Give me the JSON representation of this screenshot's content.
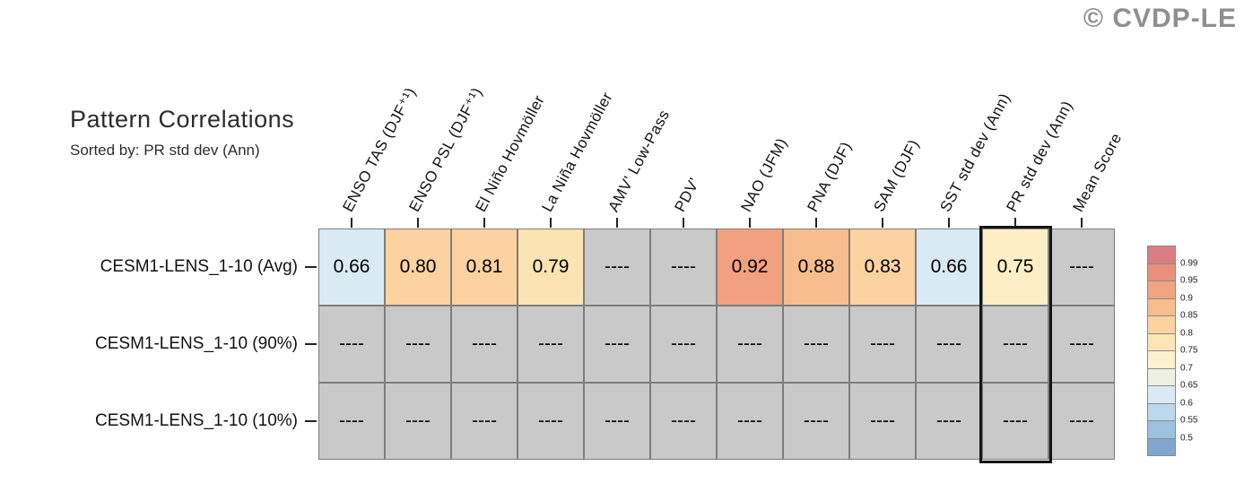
{
  "watermark": "© CVDP-LE",
  "header": {
    "title": "Pattern Correlations",
    "subtitle": "Sorted by: PR std dev (Ann)"
  },
  "chart_data": {
    "type": "heatmap",
    "title": "Pattern Correlations",
    "subtitle": "Sorted by: PR std dev (Ann)",
    "columns": [
      "ENSO TAS (DJF⁺¹)",
      "ENSO PSL (DJF⁺¹)",
      "El Niño Hovmöller",
      "La Niña Hovmöller",
      "AMV' Low-Pass",
      "PDV'",
      "NAO (JFM)",
      "PNA (DJF)",
      "SAM (DJF)",
      "SST std dev (Ann)",
      "PR std dev (Ann)",
      "Mean Score"
    ],
    "rows": [
      {
        "label": "CESM1-LENS_1-10 (Avg)",
        "values": [
          "0.66",
          "0.80",
          "0.81",
          "0.79",
          "----",
          "----",
          "0.92",
          "0.88",
          "0.83",
          "0.66",
          "0.75",
          "----"
        ],
        "colors": [
          "#daeaf4",
          "#fbd2a0",
          "#fbd2a0",
          "#fce3b2",
          "#c9c9c9",
          "#c9c9c9",
          "#f1a080",
          "#f7bd8d",
          "#fbd2a0",
          "#daeaf4",
          "#fdeec6",
          "#c9c9c9"
        ]
      },
      {
        "label": "CESM1-LENS_1-10 (90%)",
        "values": [
          "----",
          "----",
          "----",
          "----",
          "----",
          "----",
          "----",
          "----",
          "----",
          "----",
          "----",
          "----"
        ],
        "colors": [
          "#c9c9c9",
          "#c9c9c9",
          "#c9c9c9",
          "#c9c9c9",
          "#c9c9c9",
          "#c9c9c9",
          "#c9c9c9",
          "#c9c9c9",
          "#c9c9c9",
          "#c9c9c9",
          "#c9c9c9",
          "#c9c9c9"
        ]
      },
      {
        "label": "CESM1-LENS_1-10 (10%)",
        "values": [
          "----",
          "----",
          "----",
          "----",
          "----",
          "----",
          "----",
          "----",
          "----",
          "----",
          "----",
          "----"
        ],
        "colors": [
          "#c9c9c9",
          "#c9c9c9",
          "#c9c9c9",
          "#c9c9c9",
          "#c9c9c9",
          "#c9c9c9",
          "#c9c9c9",
          "#c9c9c9",
          "#c9c9c9",
          "#c9c9c9",
          "#c9c9c9",
          "#c9c9c9"
        ]
      }
    ],
    "na_value": "----",
    "highlight_column": "PR std dev (Ann)",
    "highlight_column_index": 10,
    "colorbar": {
      "labels": [
        "0.99",
        "0.95",
        "0.9",
        "0.85",
        "0.8",
        "0.75",
        "0.7",
        "0.65",
        "0.6",
        "0.55",
        "0.5"
      ],
      "colors": [
        "#d97d83",
        "#e9907d",
        "#f1a480",
        "#f7bd8d",
        "#fbd2a0",
        "#fde5b6",
        "#fdf2cf",
        "#eef0e1",
        "#daeaf4",
        "#bcd8ec",
        "#9cc2df",
        "#81a6cf"
      ]
    }
  }
}
